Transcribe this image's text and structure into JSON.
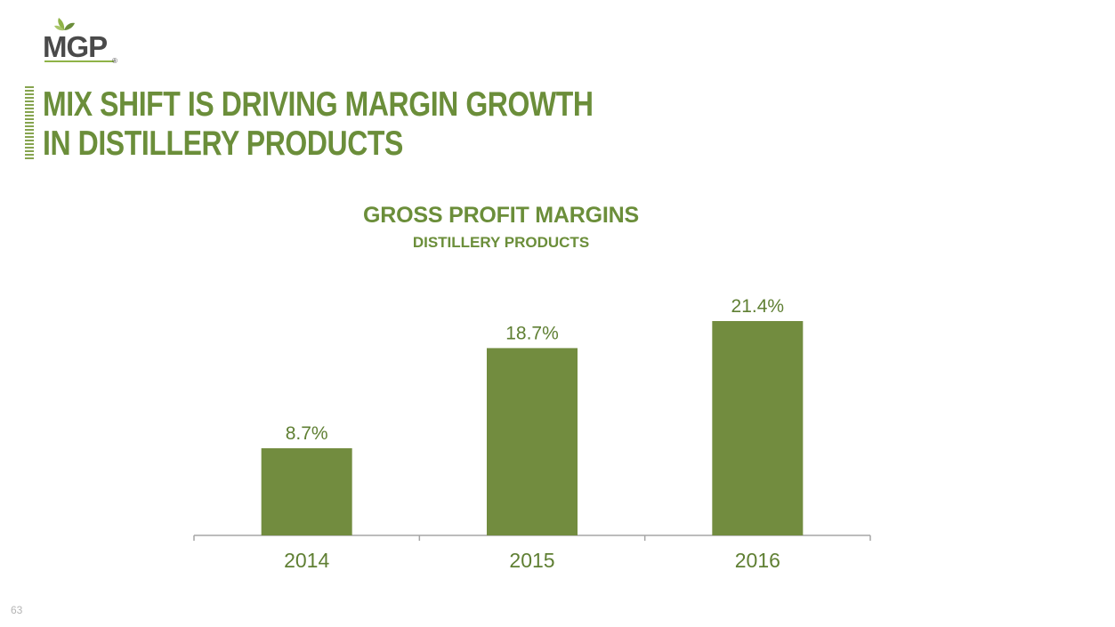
{
  "logo": {
    "text": "MGP",
    "registered": "®"
  },
  "slide": {
    "title_lines": [
      "MIX SHIFT IS DRIVING MARGIN GROWTH",
      "IN DISTILLERY PRODUCTS"
    ],
    "page_number": "63"
  },
  "colors": {
    "accent": "#6b8e3a",
    "bar": "#728c3f",
    "axis": "#a6a6a6",
    "label": "#5f7f33"
  },
  "chart_data": {
    "type": "bar",
    "title": "GROSS PROFIT MARGINS",
    "subtitle": "DISTILLERY PRODUCTS",
    "categories": [
      "2014",
      "2015",
      "2016"
    ],
    "values": [
      8.7,
      18.7,
      21.4
    ],
    "value_labels": [
      "8.7%",
      "18.7%",
      "21.4%"
    ],
    "xlabel": "",
    "ylabel": "",
    "ylim": [
      0,
      21.4
    ],
    "grid": false,
    "legend": "none"
  }
}
